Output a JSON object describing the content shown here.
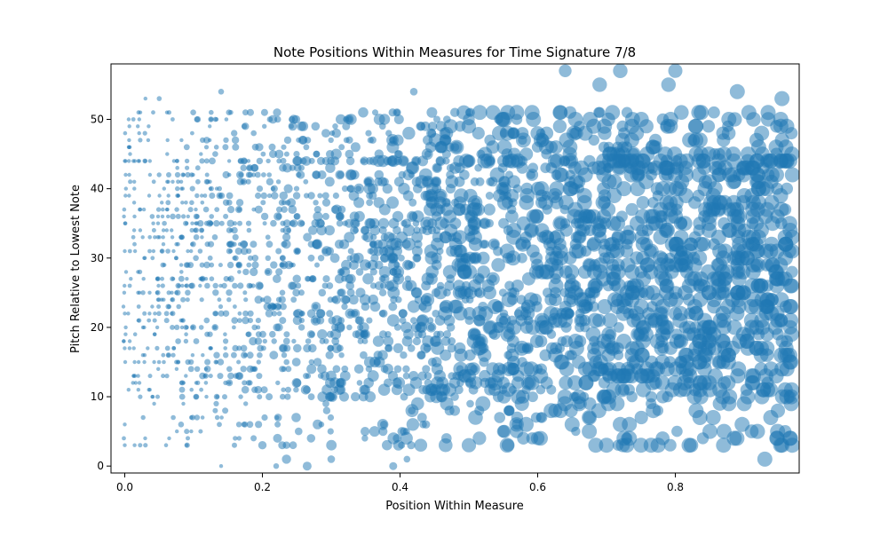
{
  "chart_data": {
    "type": "scatter",
    "title": "Note Positions Within Measures for Time Signature 7/8",
    "xlabel": "Position Within Measure",
    "ylabel": "Pitch Relative to Lowest Note",
    "xlim": [
      -0.02,
      0.98
    ],
    "ylim": [
      -1,
      58
    ],
    "x_ticks": [
      0.0,
      0.2,
      0.4,
      0.6,
      0.8
    ],
    "x_tick_labels": [
      "0.0",
      "0.2",
      "0.4",
      "0.6",
      "0.8"
    ],
    "y_ticks": [
      0,
      10,
      20,
      30,
      40,
      50
    ],
    "y_tick_labels": [
      "0",
      "10",
      "20",
      "30",
      "40",
      "50"
    ],
    "grid": false,
    "marker_color": "#1f77b4",
    "marker_alpha": 0.5,
    "pitch_core_range": [
      10,
      44
    ],
    "sparse_points": [
      {
        "x": 0.0,
        "y": 3
      },
      {
        "x": 0.0,
        "y": 6
      },
      {
        "x": 0.0,
        "y": 44
      },
      {
        "x": 0.02,
        "y": 51
      },
      {
        "x": 0.03,
        "y": 53
      },
      {
        "x": 0.05,
        "y": 53
      },
      {
        "x": 0.03,
        "y": 3
      },
      {
        "x": 0.06,
        "y": 3
      },
      {
        "x": 0.09,
        "y": 3
      },
      {
        "x": 0.14,
        "y": 0
      },
      {
        "x": 0.14,
        "y": 54
      },
      {
        "x": 0.2,
        "y": 3
      },
      {
        "x": 0.22,
        "y": 0
      },
      {
        "x": 0.235,
        "y": 1
      },
      {
        "x": 0.265,
        "y": 0
      },
      {
        "x": 0.3,
        "y": 1
      },
      {
        "x": 0.39,
        "y": 0
      },
      {
        "x": 0.41,
        "y": 1
      },
      {
        "x": 0.42,
        "y": 54
      },
      {
        "x": 0.43,
        "y": 3
      },
      {
        "x": 0.5,
        "y": 3
      },
      {
        "x": 0.55,
        "y": 5
      },
      {
        "x": 0.6,
        "y": 4
      },
      {
        "x": 0.64,
        "y": 57
      },
      {
        "x": 0.69,
        "y": 55
      },
      {
        "x": 0.72,
        "y": 57
      },
      {
        "x": 0.8,
        "y": 57
      },
      {
        "x": 0.79,
        "y": 55
      },
      {
        "x": 0.89,
        "y": 54
      },
      {
        "x": 0.93,
        "y": 1
      },
      {
        "x": 0.955,
        "y": 3
      },
      {
        "x": 0.955,
        "y": 53
      },
      {
        "x": 0.7,
        "y": 3
      },
      {
        "x": 0.75,
        "y": 3
      },
      {
        "x": 0.82,
        "y": 3
      },
      {
        "x": 0.87,
        "y": 3
      },
      {
        "x": 0.65,
        "y": 6
      },
      {
        "x": 0.675,
        "y": 5
      },
      {
        "x": 0.72,
        "y": 6
      },
      {
        "x": 0.84,
        "y": 4
      }
    ]
  }
}
